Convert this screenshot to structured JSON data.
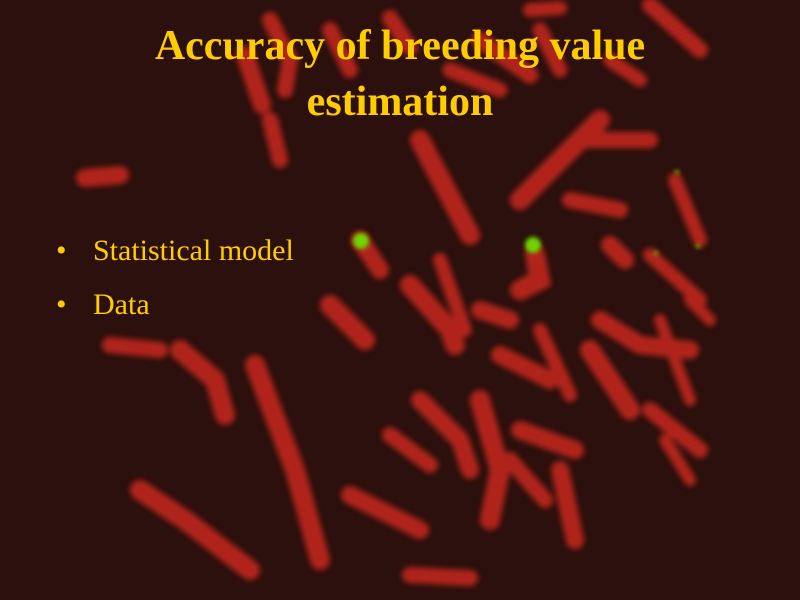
{
  "slide": {
    "title_line1": "Accuracy of breeding value",
    "title_line2": "estimation",
    "bullet_symbol": "•",
    "bullets": [
      "Statistical model",
      "Data"
    ]
  },
  "colors": {
    "background": "#2b100d",
    "text": "#ffcc00",
    "chromosome": "#c8281e",
    "signal": "#6fd400"
  }
}
